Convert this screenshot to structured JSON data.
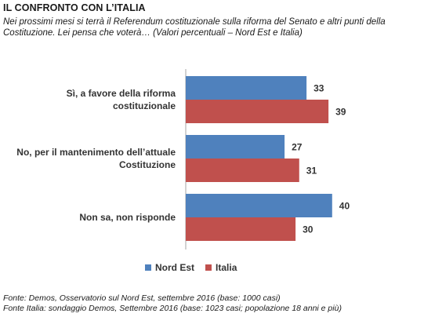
{
  "title": "IL CONFRONTO CON L’ITALIA",
  "subtitle": "Nei prossimi mesi si terrà il Referendum costituzionale sulla riforma del Senato e altri punti della Costituzione. Lei pensa che voterà… (Valori percentuali – Nord Est e Italia)",
  "colors": {
    "nord_est": "#4F81BD",
    "italia": "#C0504D"
  },
  "chart_data": {
    "type": "bar",
    "orientation": "horizontal",
    "categories": [
      [
        "Sì, a favore della riforma",
        "costituzionale"
      ],
      [
        "No, per il mantenimento dell’attuale",
        "Costituzione"
      ],
      [
        "Non sa, non risponde"
      ]
    ],
    "series": [
      {
        "name": "Nord Est",
        "values": [
          33,
          27,
          40
        ]
      },
      {
        "name": "Italia",
        "values": [
          39,
          31,
          30
        ]
      }
    ],
    "xlim": [
      0,
      50
    ],
    "grid": false,
    "legend_position": "bottom"
  },
  "sources": [
    "Fonte: Demos, Osservatorio sul Nord Est, settembre  2016 (base: 1000 casi)",
    "Fonte Italia: sondaggio Demos, Settembre 2016 (base: 1023 casi; popolazione 18 anni e più)"
  ]
}
